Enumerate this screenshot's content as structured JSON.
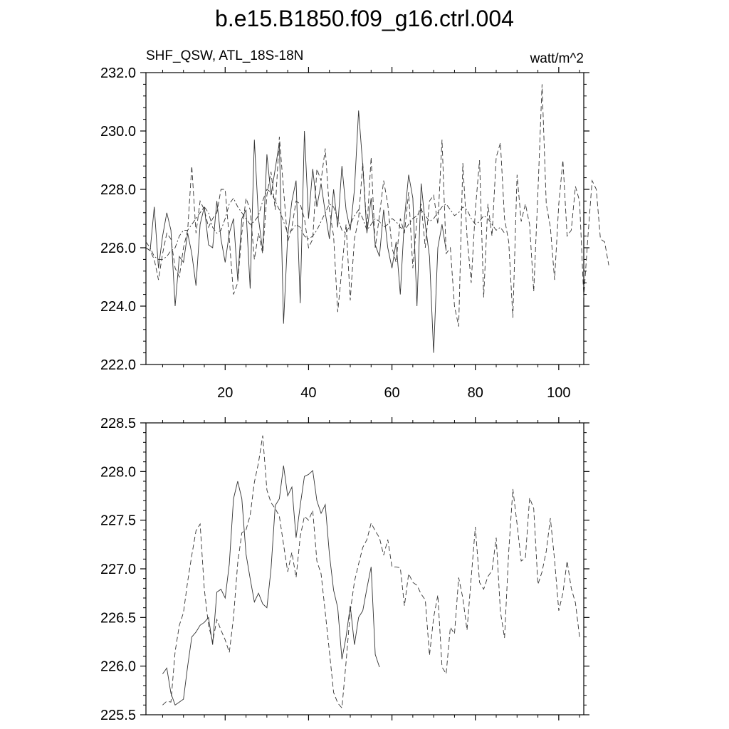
{
  "title": "b.e15.B1850.f09_g16.ctrl.004",
  "chart_data": [
    {
      "type": "line",
      "left_label": "SHF_QSW, ATL_18S-18N",
      "right_label": "watt/m^2",
      "xlim": [
        1,
        106
      ],
      "ylim": [
        222.0,
        232.0
      ],
      "x_ticks": [
        20,
        40,
        60,
        80,
        100
      ],
      "y_ticks": [
        "222.0",
        "224.0",
        "226.0",
        "228.0",
        "230.0",
        "232.0"
      ],
      "series": [
        {
          "style": "solid",
          "x_start": 1,
          "values": [
            226.0,
            225.9,
            227.4,
            225.3,
            226.4,
            227.2,
            226.6,
            224.0,
            225.7,
            225.5,
            226.5,
            225.8,
            224.7,
            226.8,
            227.4,
            226.1,
            226.0,
            227.6,
            226.3,
            225.5,
            226.5,
            227.0,
            224.9,
            227.0,
            227.3,
            224.6,
            229.7,
            227.0,
            225.9,
            229.2,
            227.8,
            228.7,
            229.6,
            223.4,
            226.4,
            227.6,
            228.3,
            224.1,
            230.0,
            227.0,
            228.7,
            227.4,
            228.2,
            227.2,
            226.3,
            228.0,
            226.7,
            228.8,
            227.3,
            226.6,
            228.0,
            230.7,
            228.8,
            226.5,
            227.7,
            226.1,
            225.7,
            227.3,
            226.0,
            225.3,
            226.2,
            224.4,
            227.0,
            228.5,
            227.7,
            224.0,
            228.2,
            226.8,
            225.7,
            222.4,
            226.0,
            226.8,
            225.9
          ]
        },
        {
          "style": "dashed",
          "x_start": 1,
          "values": [
            226.0,
            225.9,
            225.6,
            224.9,
            225.8,
            226.5,
            226.3,
            225.3,
            225.0,
            226.0,
            226.6,
            228.8,
            226.5,
            227.6,
            227.3,
            226.7,
            227.0,
            227.2,
            228.0,
            228.0,
            226.3,
            224.4,
            224.8,
            226.5,
            227.7,
            227.3,
            225.6,
            226.5,
            225.8,
            227.8,
            228.6,
            227.3,
            229.8,
            228.0,
            226.2,
            226.7,
            227.6,
            227.5,
            227.0,
            226.0,
            226.3,
            228.7,
            228.3,
            229.4,
            227.3,
            226.4,
            223.8,
            225.3,
            226.8,
            224.2,
            226.3,
            227.0,
            228.9,
            226.6,
            229.1,
            226.0,
            227.1,
            228.3,
            227.5,
            226.0,
            225.5,
            227.0,
            226.5,
            227.9,
            225.3,
            227.0,
            227.5,
            226.0,
            227.6,
            227.8,
            226.8,
            229.7,
            225.8,
            226.0,
            224.0,
            223.3,
            228.9,
            226.4,
            224.8,
            227.3,
            229.0,
            224.3,
            227.5,
            226.4,
            229.1,
            229.6,
            227.0,
            226.2,
            223.6,
            228.5,
            226.9,
            227.5,
            226.8,
            224.5,
            227.9,
            231.6,
            227.5,
            226.7,
            224.9,
            227.5,
            229.0,
            226.4,
            226.6,
            228.1,
            227.6,
            224.3,
            226.4,
            228.3,
            228.0,
            226.3,
            226.2,
            225.4
          ]
        },
        {
          "style": "dash-dot",
          "x_start": 1,
          "values": [
            226.2,
            226.0,
            225.7,
            225.6,
            225.6,
            225.7,
            225.9,
            226.0,
            226.4,
            226.6,
            226.6,
            226.8,
            227.0,
            227.2,
            227.4,
            227.2,
            226.7,
            226.5,
            226.6,
            227.0,
            227.5,
            227.7,
            227.4,
            227.2,
            227.0,
            226.8,
            226.9,
            227.1,
            227.6,
            228.0,
            227.9,
            227.6,
            227.3,
            226.9,
            226.5,
            226.6,
            226.8,
            226.7,
            226.4,
            226.3,
            226.4,
            226.6,
            226.9,
            227.2,
            227.5,
            227.4,
            227.0,
            226.6,
            226.5,
            226.8,
            227.1,
            227.3,
            227.0,
            226.6,
            226.8,
            227.0,
            226.9,
            226.7,
            226.8,
            227.0,
            226.9,
            226.7,
            226.6,
            226.8,
            227.0,
            227.1,
            227.3,
            227.1,
            226.9,
            227.0,
            227.2,
            227.4,
            227.5,
            227.3,
            227.1,
            227.2,
            227.4,
            227.3,
            227.0,
            226.8,
            226.9,
            227.1,
            227.0,
            226.8,
            226.6,
            226.7,
            226.5
          ]
        }
      ]
    },
    {
      "type": "line",
      "ylim": [
        225.5,
        228.5
      ],
      "y_ticks": [
        "225.5",
        "226.0",
        "226.5",
        "227.0",
        "227.5",
        "228.0",
        "228.5"
      ],
      "series": [
        {
          "style": "solid",
          "x_start": 5,
          "values": [
            225.92,
            225.98,
            225.72,
            225.6,
            225.63,
            225.66,
            226.0,
            226.3,
            226.35,
            226.42,
            226.45,
            226.5,
            226.22,
            226.76,
            226.79,
            226.7,
            227.05,
            227.72,
            227.9,
            227.72,
            227.15,
            226.9,
            226.66,
            226.75,
            226.64,
            226.6,
            227.0,
            227.65,
            227.72,
            228.06,
            227.75,
            227.84,
            227.32,
            227.65,
            227.95,
            227.97,
            228.01,
            227.7,
            227.57,
            227.66,
            227.15,
            226.78,
            226.6,
            226.07,
            226.3,
            226.62,
            226.22,
            226.5,
            226.57,
            226.8,
            227.02,
            226.12,
            225.99
          ]
        },
        {
          "style": "dashed",
          "x_start": 5,
          "values": [
            225.6,
            225.64,
            225.63,
            226.15,
            226.42,
            226.55,
            226.87,
            227.14,
            227.39,
            227.46,
            226.79,
            226.42,
            226.25,
            226.48,
            226.37,
            226.27,
            226.14,
            226.5,
            227.06,
            227.37,
            227.4,
            227.55,
            227.89,
            228.09,
            228.37,
            227.81,
            227.68,
            227.62,
            227.54,
            227.25,
            226.97,
            227.17,
            226.91,
            227.33,
            227.54,
            227.5,
            227.6,
            227.08,
            226.95,
            226.55,
            226.15,
            225.73,
            225.62,
            225.57,
            226.04,
            226.56,
            226.87,
            227.05,
            227.22,
            227.3,
            227.47,
            227.39,
            227.32,
            227.14,
            227.3,
            227.02,
            227.02,
            227.01,
            226.62,
            226.95,
            226.86,
            226.83,
            226.74,
            226.68,
            226.11,
            226.5,
            226.73,
            225.99,
            225.92,
            226.4,
            226.33,
            226.91,
            226.7,
            226.37,
            226.91,
            227.43,
            226.86,
            226.79,
            226.92,
            226.98,
            227.32,
            226.56,
            226.29,
            227.18,
            227.82,
            227.46,
            227.08,
            227.11,
            227.73,
            227.62,
            226.84,
            226.97,
            227.18,
            227.52,
            227.09,
            226.57,
            226.75,
            227.08,
            226.8,
            226.65,
            226.3
          ]
        }
      ]
    }
  ]
}
